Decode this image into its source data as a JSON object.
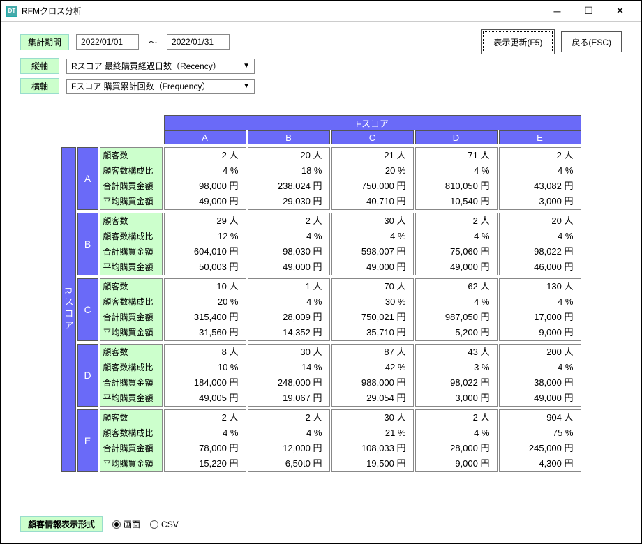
{
  "window": {
    "icon_text": "DT",
    "title": "RFMクロス分析"
  },
  "buttons": {
    "refresh": "表示更新(F5)",
    "back": "戻る(ESC)"
  },
  "period": {
    "label": "集計期間",
    "from": "2022/01/01",
    "tilde": "～",
    "to": "2022/01/31"
  },
  "axis_v": {
    "label": "縦軸",
    "value": "Rスコア 最終購買経過日数（Recency）"
  },
  "axis_h": {
    "label": "横軸",
    "value": "Fスコア 購買累計回数（Frequency）"
  },
  "table": {
    "col_header_title": "Fスコア",
    "row_header_title": "Rスコア",
    "cols": [
      "A",
      "B",
      "C",
      "D",
      "E"
    ],
    "metric_labels": [
      "顧客数",
      "顧客数構成比",
      "合計購買金額",
      "平均購買金額"
    ],
    "groups": [
      {
        "label": "A",
        "cells": [
          [
            "2 人",
            "20 人",
            "21 人",
            "71 人",
            "2 人"
          ],
          [
            "4 %",
            "18 %",
            "20 %",
            "4 %",
            "4 %"
          ],
          [
            "98,000 円",
            "238,024 円",
            "750,000 円",
            "810,050 円",
            "43,082 円"
          ],
          [
            "49,000 円",
            "29,030 円",
            "40,710 円",
            "10,540 円",
            "3,000 円"
          ]
        ]
      },
      {
        "label": "B",
        "cells": [
          [
            "29 人",
            "2 人",
            "30 人",
            "2 人",
            "20 人"
          ],
          [
            "12 %",
            "4 %",
            "4 %",
            "4 %",
            "4 %"
          ],
          [
            "604,010 円",
            "98,030 円",
            "598,007 円",
            "75,060 円",
            "98,022 円"
          ],
          [
            "50,003 円",
            "49,000 円",
            "49,000 円",
            "49,000 円",
            "46,000 円"
          ]
        ]
      },
      {
        "label": "C",
        "cells": [
          [
            "10 人",
            "1 人",
            "70 人",
            "62 人",
            "130 人"
          ],
          [
            "20 %",
            "4 %",
            "30 %",
            "4 %",
            "4 %"
          ],
          [
            "315,400 円",
            "28,009 円",
            "750,021 円",
            "987,050 円",
            "17,000 円"
          ],
          [
            "31,560 円",
            "14,352 円",
            "35,710 円",
            "5,200 円",
            "9,000 円"
          ]
        ]
      },
      {
        "label": "D",
        "cells": [
          [
            "8 人",
            "30 人",
            "87 人",
            "43 人",
            "200 人"
          ],
          [
            "10 %",
            "14 %",
            "42 %",
            "3 %",
            "4 %"
          ],
          [
            "184,000 円",
            "248,000 円",
            "988,000 円",
            "98,022 円",
            "38,000 円"
          ],
          [
            "49,005 円",
            "19,067 円",
            "29,054 円",
            "3,000 円",
            "49,000 円"
          ]
        ]
      },
      {
        "label": "E",
        "cells": [
          [
            "2 人",
            "2 人",
            "30 人",
            "2 人",
            "904 人"
          ],
          [
            "4 %",
            "4 %",
            "21 %",
            "4 %",
            "75 %"
          ],
          [
            "78,000 円",
            "12,000 円",
            "108,033 円",
            "28,000 円",
            "245,000 円"
          ],
          [
            "15,220 円",
            "6,50t0 円",
            "19,500 円",
            "9,000 円",
            "4,300 円"
          ]
        ]
      }
    ]
  },
  "footer": {
    "label": "顧客情報表示形式",
    "opt_screen": "画面",
    "opt_csv": "CSV",
    "selected": "screen"
  },
  "colors": {
    "green_bg": "#ccffcc",
    "purple_bg": "#6a6af8"
  }
}
